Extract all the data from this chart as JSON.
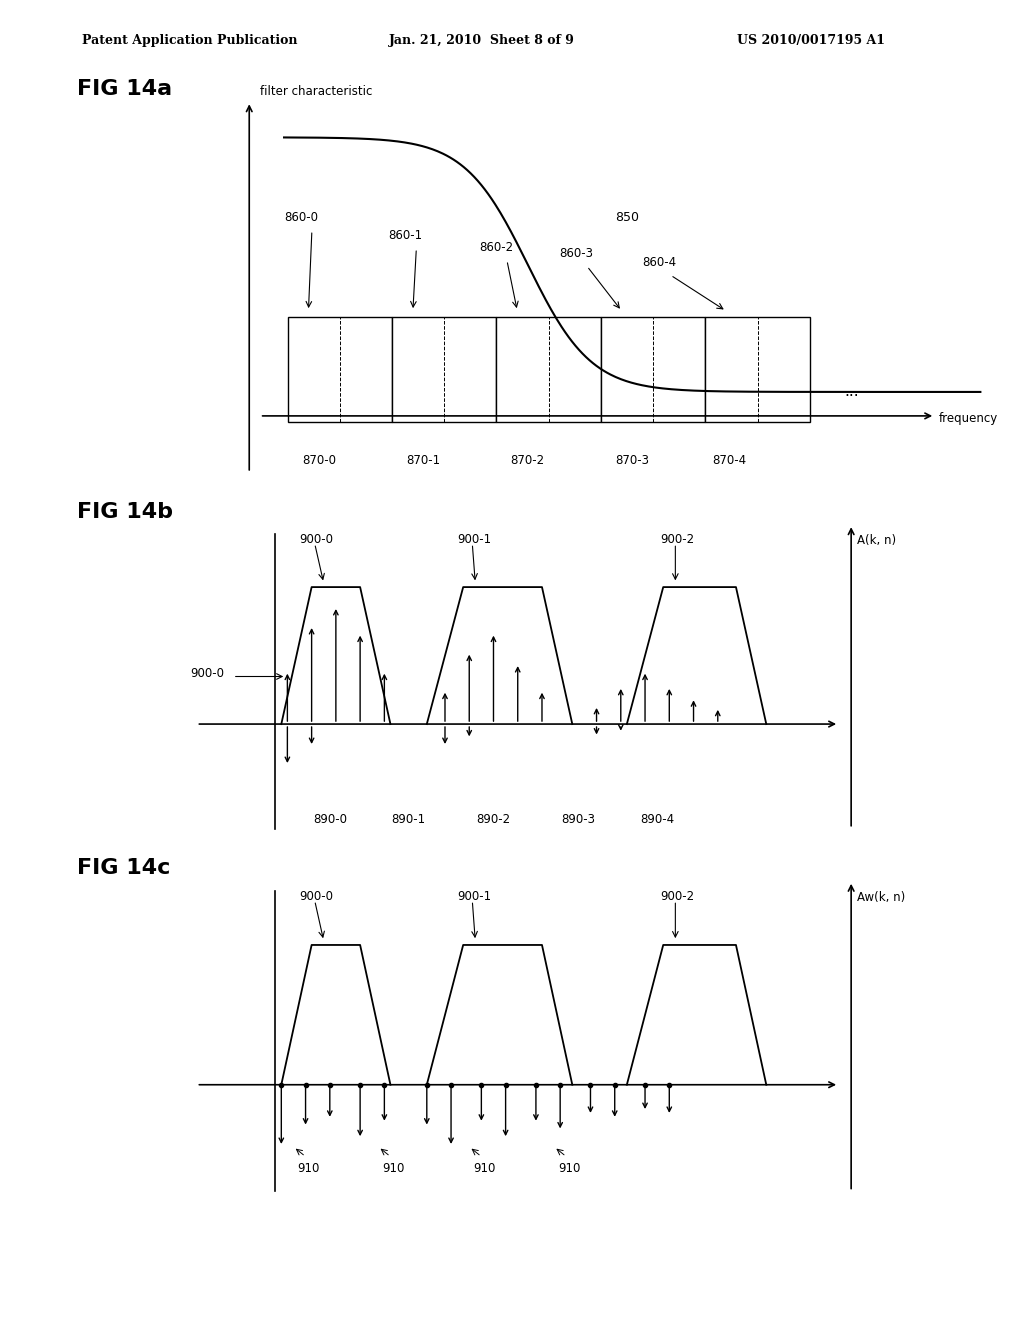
{
  "bg_color": "#ffffff",
  "text_color": "#000000",
  "header_left": "Patent Application Publication",
  "header_center": "Jan. 21, 2010  Sheet 8 of 9",
  "header_right": "US 2010/0017195 A1",
  "fig14a_label": "FIG 14a",
  "fig14b_label": "FIG 14b",
  "fig14c_label": "FIG 14c",
  "fig14a_ylabel": "filter characteristic",
  "fig14a_xlabel": "frequency",
  "fig14a_curve_label": "850",
  "fig14a_box_labels": [
    "860-0",
    "860-1",
    "860-2",
    "860-3",
    "860-4"
  ],
  "fig14a_freq_labels": [
    "870-0",
    "870-1",
    "870-2",
    "870-3",
    "870-4"
  ],
  "fig14b_ylabel": "A(k, n)",
  "fig14b_step_labels": [
    "900-0",
    "900-1",
    "900-2"
  ],
  "fig14b_stem_label": "900-0",
  "fig14b_stem_labels_bottom": [
    "890-0",
    "890-1",
    "890-2",
    "890-3",
    "890-4"
  ],
  "fig14c_ylabel": "Aw(k, n)",
  "fig14c_step_labels": [
    "900-0",
    "900-1",
    "900-2"
  ],
  "fig14c_dot_label": "910"
}
